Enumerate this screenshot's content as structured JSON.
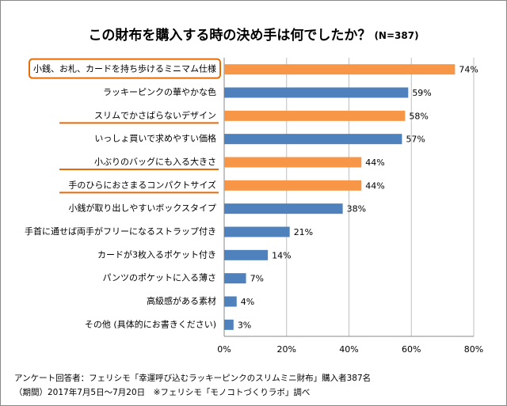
{
  "chart_data": {
    "type": "bar",
    "orientation": "horizontal",
    "title": "この財布を購入する時の決め手は何でしたか？",
    "subtitle": "(N=387)",
    "categories": [
      "小銭、お札、カードを持ち歩けるミニマム仕様",
      "ラッキーピンクの華やかな色",
      "スリムでかさばらないデザイン",
      "いっしょ買いで求めやすい価格",
      "小ぶりのバッグにも入る大きさ",
      "手のひらにおさまるコンパクトサイズ",
      "小銭が取り出しやすいボックスタイプ",
      "手首に通せば両手がフリーになるストラップ付き",
      "カードが3枚入るポケット付き",
      "パンツのポケットに入る薄さ",
      "高級感がある素材",
      "その他 (具体的にお書きください)"
    ],
    "values": [
      74,
      59,
      58,
      57,
      44,
      44,
      38,
      21,
      14,
      7,
      4,
      3
    ],
    "value_labels": [
      "74%",
      "59%",
      "58%",
      "57%",
      "44%",
      "44%",
      "38%",
      "21%",
      "14%",
      "7%",
      "4%",
      "3%"
    ],
    "colors": [
      "#f79646",
      "#4f81bd",
      "#f79646",
      "#4f81bd",
      "#f79646",
      "#f79646",
      "#4f81bd",
      "#4f81bd",
      "#4f81bd",
      "#4f81bd",
      "#4f81bd",
      "#4f81bd"
    ],
    "label_styles": [
      "box",
      "plain",
      "underline",
      "plain",
      "underline",
      "underline",
      "plain",
      "plain",
      "plain",
      "plain",
      "plain",
      "plain"
    ],
    "highlight_color": "#e36c09",
    "xlim": [
      0,
      80
    ],
    "xticks": [
      {
        "value": 0,
        "label": "0%"
      },
      {
        "value": 20,
        "label": "20%"
      },
      {
        "value": 40,
        "label": "40%"
      },
      {
        "value": 60,
        "label": "60%"
      },
      {
        "value": 80,
        "label": "80%"
      }
    ],
    "grid": true,
    "notes": [
      "アンケート回答者：フェリシモ「幸運呼び込むラッキーピンクのスリムミニ財布」購入者387名",
      "（期間）2017年7月5日〜7月20日　※フェリシモ「モノコトづくりラボ」調べ"
    ]
  }
}
